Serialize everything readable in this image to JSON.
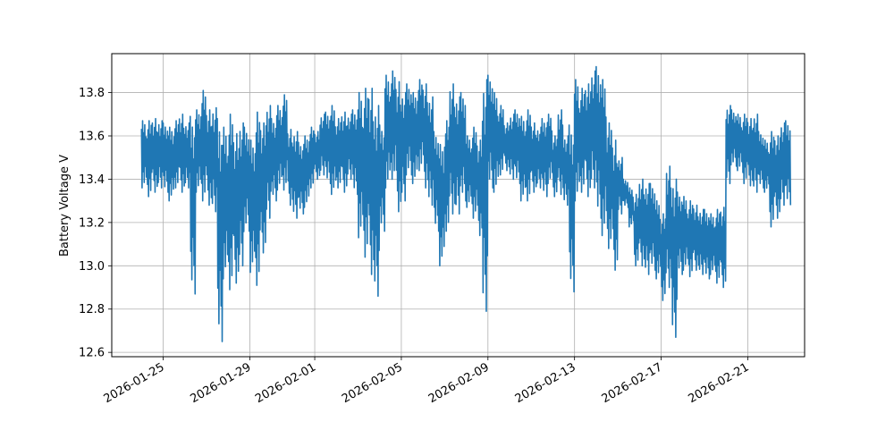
{
  "chart_data": {
    "type": "line",
    "ylabel": "Battery Voltage V",
    "xlabel": "",
    "title": "",
    "grid": true,
    "colors": {
      "line": "#1f77b4",
      "grid": "#b0b0b0",
      "axis": "#000000"
    },
    "xlim": [
      "2026-01-22T15:00",
      "2026-02-23T15:00"
    ],
    "ylim": [
      12.58,
      13.98
    ],
    "x_ticks": [
      "2026-01-25",
      "2026-01-29",
      "2026-02-01",
      "2026-02-05",
      "2026-02-09",
      "2026-02-13",
      "2026-02-17",
      "2026-02-21"
    ],
    "y_ticks": [
      "12.6",
      "12.8",
      "13.0",
      "13.2",
      "13.4",
      "13.6",
      "13.8"
    ],
    "series": [
      {
        "x": [
          "2026-01-24T00:00",
          "2026-01-24T06:00",
          "2026-01-24T12:00",
          "2026-01-24T18:00",
          "2026-01-25T00:00",
          "2026-01-25T06:00",
          "2026-01-25T12:00",
          "2026-01-25T18:00",
          "2026-01-26T00:00",
          "2026-01-26T06:00",
          "2026-01-26T12:00",
          "2026-01-26T18:00",
          "2026-01-27T00:00",
          "2026-01-27T06:00",
          "2026-01-27T12:00",
          "2026-01-27T18:00",
          "2026-01-28T00:00",
          "2026-01-28T06:00",
          "2026-01-28T12:00",
          "2026-01-28T18:00",
          "2026-01-29T00:00",
          "2026-01-29T06:00",
          "2026-01-29T12:00",
          "2026-01-29T18:00",
          "2026-01-30T00:00",
          "2026-01-30T06:00",
          "2026-01-30T12:00",
          "2026-01-30T18:00",
          "2026-01-31T00:00",
          "2026-01-31T06:00",
          "2026-01-31T12:00",
          "2026-01-31T18:00",
          "2026-02-01T00:00",
          "2026-02-01T06:00",
          "2026-02-01T12:00",
          "2026-02-01T18:00",
          "2026-02-02T00:00",
          "2026-02-02T06:00",
          "2026-02-02T12:00",
          "2026-02-02T18:00",
          "2026-02-03T00:00",
          "2026-02-03T06:00",
          "2026-02-03T12:00",
          "2026-02-03T18:00",
          "2026-02-04T00:00",
          "2026-02-04T06:00",
          "2026-02-04T12:00",
          "2026-02-04T18:00",
          "2026-02-05T00:00",
          "2026-02-05T06:00",
          "2026-02-05T12:00",
          "2026-02-05T18:00",
          "2026-02-06T00:00",
          "2026-02-06T06:00",
          "2026-02-06T12:00",
          "2026-02-06T18:00",
          "2026-02-07T00:00",
          "2026-02-07T06:00",
          "2026-02-07T12:00",
          "2026-02-07T18:00",
          "2026-02-08T00:00",
          "2026-02-08T06:00",
          "2026-02-08T12:00",
          "2026-02-08T18:00",
          "2026-02-09T00:00",
          "2026-02-09T06:00",
          "2026-02-09T12:00",
          "2026-02-09T18:00",
          "2026-02-10T00:00",
          "2026-02-10T06:00",
          "2026-02-10T12:00",
          "2026-02-10T18:00",
          "2026-02-11T00:00",
          "2026-02-11T06:00",
          "2026-02-11T12:00",
          "2026-02-11T18:00",
          "2026-02-12T00:00",
          "2026-02-12T06:00",
          "2026-02-12T12:00",
          "2026-02-12T18:00",
          "2026-02-13T00:00",
          "2026-02-13T06:00",
          "2026-02-13T12:00",
          "2026-02-13T18:00",
          "2026-02-14T00:00",
          "2026-02-14T06:00",
          "2026-02-14T12:00",
          "2026-02-14T18:00",
          "2026-02-15T00:00",
          "2026-02-15T06:00",
          "2026-02-15T12:00",
          "2026-02-15T18:00",
          "2026-02-16T00:00",
          "2026-02-16T06:00",
          "2026-02-16T12:00",
          "2026-02-16T18:00",
          "2026-02-17T00:00",
          "2026-02-17T06:00",
          "2026-02-17T12:00",
          "2026-02-17T18:00",
          "2026-02-18T00:00",
          "2026-02-18T06:00",
          "2026-02-18T12:00",
          "2026-02-18T18:00",
          "2026-02-19T00:00",
          "2026-02-19T06:00",
          "2026-02-19T12:00",
          "2026-02-19T18:00",
          "2026-02-20T00:00",
          "2026-02-20T06:00",
          "2026-02-20T12:00",
          "2026-02-20T18:00",
          "2026-02-21T00:00",
          "2026-02-21T06:00",
          "2026-02-21T12:00",
          "2026-02-21T18:00",
          "2026-02-22T00:00",
          "2026-02-22T06:00",
          "2026-02-22T12:00",
          "2026-02-22T18:00"
        ],
        "min": [
          13.36,
          13.32,
          13.34,
          13.36,
          13.34,
          13.3,
          13.36,
          13.34,
          13.36,
          12.87,
          13.34,
          13.3,
          13.28,
          13.25,
          12.65,
          12.94,
          12.89,
          12.92,
          13.0,
          13.16,
          12.97,
          12.91,
          13.06,
          13.22,
          13.3,
          13.35,
          13.35,
          13.28,
          13.22,
          13.24,
          13.27,
          13.36,
          13.4,
          13.42,
          13.38,
          13.33,
          13.36,
          13.34,
          13.4,
          13.33,
          13.13,
          13.04,
          12.96,
          12.86,
          13.16,
          13.36,
          13.4,
          13.25,
          13.3,
          13.42,
          13.38,
          13.44,
          13.36,
          13.28,
          13.16,
          13.0,
          13.16,
          13.24,
          13.24,
          13.3,
          13.27,
          13.22,
          13.14,
          12.79,
          13.36,
          13.34,
          13.42,
          13.44,
          13.4,
          13.38,
          13.3,
          13.3,
          13.34,
          13.36,
          13.32,
          13.38,
          13.32,
          13.33,
          13.28,
          12.88,
          13.3,
          13.34,
          13.32,
          13.36,
          13.22,
          13.14,
          13.08,
          12.98,
          13.24,
          13.27,
          13.18,
          13.0,
          13.0,
          12.96,
          12.98,
          12.94,
          12.84,
          12.9,
          12.67,
          12.96,
          12.98,
          12.95,
          12.98,
          12.96,
          12.94,
          12.96,
          12.92,
          12.9,
          13.38,
          13.46,
          13.44,
          13.38,
          13.37,
          13.34,
          13.36,
          13.34,
          13.18,
          13.22,
          13.28,
          13.28
        ],
        "max": [
          13.67,
          13.67,
          13.68,
          13.67,
          13.66,
          13.64,
          13.67,
          13.7,
          13.66,
          13.69,
          13.72,
          13.81,
          13.72,
          13.73,
          13.68,
          13.64,
          13.7,
          13.61,
          13.66,
          13.64,
          13.58,
          13.71,
          13.66,
          13.74,
          13.68,
          13.74,
          13.79,
          13.63,
          13.62,
          13.57,
          13.6,
          13.64,
          13.62,
          13.7,
          13.71,
          13.74,
          13.68,
          13.71,
          13.7,
          13.72,
          13.8,
          13.82,
          13.82,
          13.74,
          13.65,
          13.88,
          13.9,
          13.85,
          13.8,
          13.84,
          13.8,
          13.86,
          13.84,
          13.78,
          13.62,
          13.56,
          13.67,
          13.84,
          13.78,
          13.8,
          13.6,
          13.64,
          13.58,
          13.86,
          13.88,
          13.8,
          13.74,
          13.66,
          13.7,
          13.72,
          13.69,
          13.72,
          13.66,
          13.64,
          13.68,
          13.7,
          13.6,
          13.72,
          13.6,
          13.65,
          13.86,
          13.82,
          13.84,
          13.9,
          13.92,
          13.86,
          13.66,
          13.58,
          13.5,
          13.4,
          13.36,
          13.33,
          13.4,
          13.38,
          13.38,
          13.3,
          13.24,
          13.46,
          13.4,
          13.34,
          13.32,
          13.3,
          13.28,
          13.26,
          13.26,
          13.24,
          13.26,
          13.27,
          13.74,
          13.72,
          13.7,
          13.7,
          13.68,
          13.7,
          13.62,
          13.58,
          13.62,
          13.6,
          13.66,
          13.67
        ]
      }
    ]
  }
}
